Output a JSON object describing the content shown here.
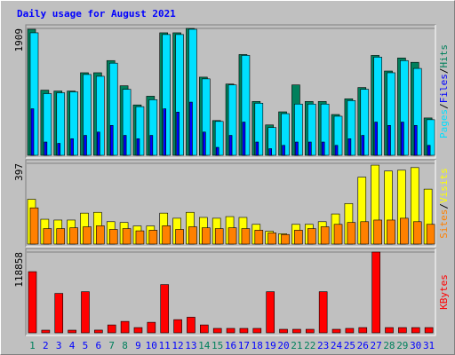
{
  "chart_data": [
    {
      "type": "bar",
      "title": "Daily usage for August 2021",
      "title_color": "#0000ff",
      "ylim": [
        0,
        1909
      ],
      "yticks": [
        1909
      ],
      "legend_separator": "/",
      "series": [
        {
          "name": "Hits",
          "color": "#00805c",
          "values": [
            1896,
            980,
            967,
            967,
            1242,
            1242,
            1425,
            1046,
            758,
            889,
            1843,
            1843,
            1909,
            1176,
            523,
            1072,
            1516,
            810,
            457,
            654,
            1059,
            810,
            810,
            614,
            850,
            1020,
            1503,
            1268,
            1464,
            1399,
            562
          ]
        },
        {
          "name": "Files",
          "color": "#0000ff",
          "values": [
            700,
            200,
            180,
            250,
            300,
            350,
            450,
            300,
            250,
            300,
            700,
            650,
            800,
            350,
            120,
            300,
            500,
            200,
            100,
            150,
            200,
            200,
            200,
            150,
            250,
            300,
            500,
            450,
            500,
            450,
            150
          ]
        },
        {
          "name": "Pages",
          "color": "#00e0ff",
          "values": [
            1843,
            928,
            941,
            954,
            1216,
            1189,
            1386,
            993,
            732,
            837,
            1817,
            1817,
            1896,
            1150,
            510,
            1059,
            1503,
            784,
            418,
            627,
            771,
            771,
            771,
            588,
            823,
            993,
            1477,
            1242,
            1425,
            1307,
            536
          ]
        }
      ]
    },
    {
      "type": "bar",
      "ylim": [
        0,
        397
      ],
      "yticks": [
        397
      ],
      "legend_separator": "/",
      "series": [
        {
          "name": "Visits",
          "color": "#ffff00",
          "values": [
            220,
            122,
            118,
            118,
            152,
            156,
            110,
            106,
            89,
            89,
            152,
            127,
            156,
            131,
            127,
            135,
            131,
            97,
            63,
            51,
            97,
            97,
            110,
            148,
            199,
            329,
            388,
            359,
            363,
            376,
            270
          ]
        },
        {
          "name": "Sites",
          "color": "#ff8000",
          "values": [
            178,
            76,
            76,
            80,
            85,
            90,
            72,
            76,
            65,
            68,
            90,
            72,
            85,
            80,
            76,
            80,
            76,
            68,
            55,
            47,
            68,
            76,
            85,
            97,
            106,
            110,
            118,
            118,
            127,
            110,
            97
          ]
        }
      ]
    },
    {
      "type": "bar",
      "ylim": [
        0,
        118858
      ],
      "yticks": [
        118858
      ],
      "categories": [
        "1",
        "2",
        "3",
        "4",
        "5",
        "6",
        "7",
        "8",
        "9",
        "10",
        "11",
        "12",
        "13",
        "14",
        "15",
        "16",
        "17",
        "18",
        "19",
        "20",
        "21",
        "22",
        "23",
        "24",
        "25",
        "26",
        "27",
        "28",
        "29",
        "30",
        "31"
      ],
      "category_colors": [
        "#00805c",
        "#0000ff",
        "#0000ff",
        "#0000ff",
        "#0000ff",
        "#0000ff",
        "#00805c",
        "#00805c",
        "#0000ff",
        "#0000ff",
        "#0000ff",
        "#0000ff",
        "#0000ff",
        "#00805c",
        "#00805c",
        "#0000ff",
        "#0000ff",
        "#0000ff",
        "#0000ff",
        "#0000ff",
        "#00805c",
        "#00805c",
        "#0000ff",
        "#0000ff",
        "#0000ff",
        "#0000ff",
        "#0000ff",
        "#00805c",
        "#00805c",
        "#0000ff",
        "#0000ff"
      ],
      "series": [
        {
          "name": "KBytes",
          "color": "#ff0000",
          "values": [
            90000,
            3900,
            58000,
            3900,
            60500,
            4000,
            11600,
            16800,
            7700,
            15500,
            71000,
            19400,
            23000,
            11600,
            6500,
            6500,
            6500,
            6500,
            60500,
            5200,
            5200,
            5200,
            60500,
            5200,
            6500,
            7700,
            118858,
            7700,
            7700,
            7700,
            7700
          ]
        }
      ]
    }
  ]
}
